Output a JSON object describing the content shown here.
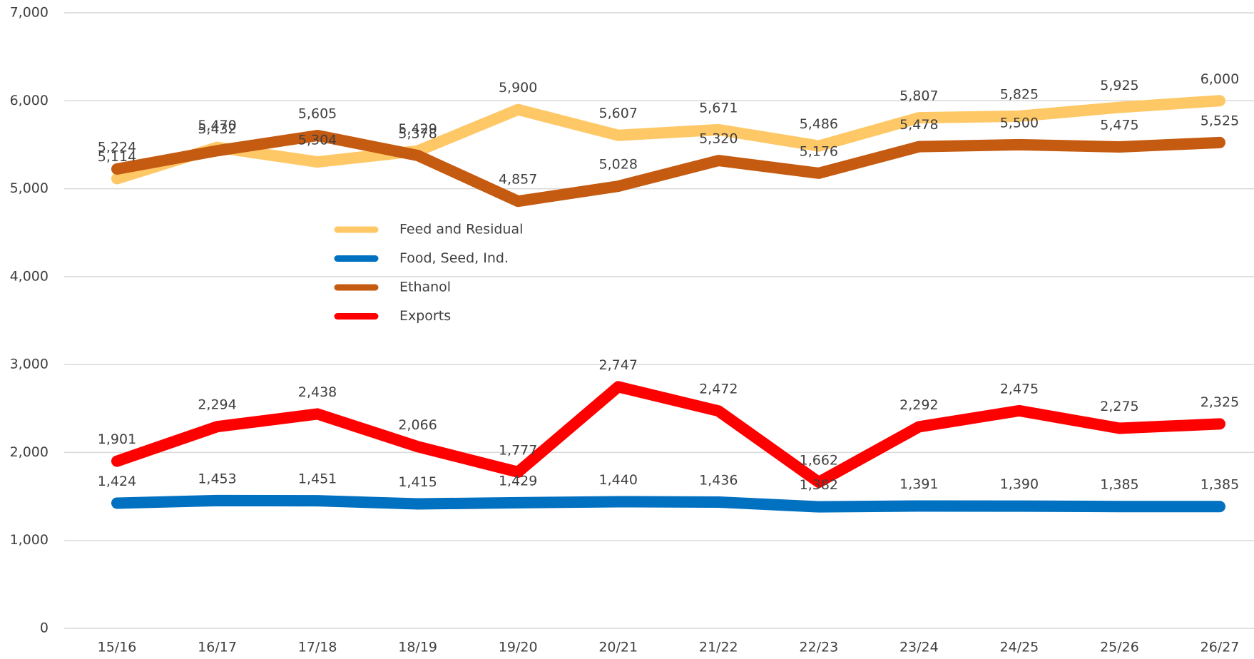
{
  "chart_data": {
    "type": "line",
    "categories": [
      "15/16",
      "16/17",
      "17/18",
      "18/19",
      "19/20",
      "20/21",
      "21/22",
      "22/23",
      "23/24",
      "24/25",
      "25/26",
      "26/27"
    ],
    "series": [
      {
        "name": "Feed and Residual",
        "color": "#ffc866",
        "values": [
          5114,
          5470,
          5304,
          5429,
          5900,
          5607,
          5671,
          5486,
          5807,
          5825,
          5925,
          6000
        ],
        "value_labels": [
          "5,114",
          "5,470",
          "5,304",
          "5,429",
          "5,900",
          "5,607",
          "5,671",
          "5,486",
          "5,807",
          "5,825",
          "5,925",
          "6,000"
        ]
      },
      {
        "name": "Food, Seed, Ind.",
        "color": "#0070c0",
        "values": [
          1424,
          1453,
          1451,
          1415,
          1429,
          1440,
          1436,
          1382,
          1391,
          1390,
          1385,
          1385
        ],
        "value_labels": [
          "1,424",
          "1,453",
          "1,451",
          "1,415",
          "1,429",
          "1,440",
          "1,436",
          "1,382",
          "1,391",
          "1,390",
          "1,385",
          "1,385"
        ]
      },
      {
        "name": "Ethanol",
        "color": "#c55a11",
        "values": [
          5224,
          5432,
          5605,
          5378,
          4857,
          5028,
          5320,
          5176,
          5478,
          5500,
          5475,
          5525
        ],
        "value_labels": [
          "5,224",
          "5,432",
          "5,605",
          "5,378",
          "4,857",
          "5,028",
          "5,320",
          "5,176",
          "5,478",
          "5,500",
          "5,475",
          "5,525"
        ]
      },
      {
        "name": "Exports",
        "color": "#ff0000",
        "values": [
          1901,
          2294,
          2438,
          2066,
          1777,
          2747,
          2472,
          1662,
          2292,
          2475,
          2275,
          2325
        ],
        "value_labels": [
          "1,901",
          "2,294",
          "2,438",
          "2,066",
          "1,777",
          "2,747",
          "2,472",
          "1,662",
          "2,292",
          "2,475",
          "2,275",
          "2,325"
        ]
      }
    ],
    "ylim": [
      0,
      7000
    ],
    "yticks": [
      0,
      {
        "value": 1000,
        "label": "1,000"
      },
      {
        "value": 2000,
        "label": "2,000"
      },
      {
        "value": 3000,
        "label": "3,000"
      },
      {
        "value": 4000,
        "label": "4,000"
      },
      {
        "value": 5000,
        "label": "5,000"
      },
      {
        "value": 6000,
        "label": "6,000"
      },
      {
        "value": 7000,
        "label": "7,000"
      }
    ],
    "grid": true,
    "legend": "inside"
  }
}
